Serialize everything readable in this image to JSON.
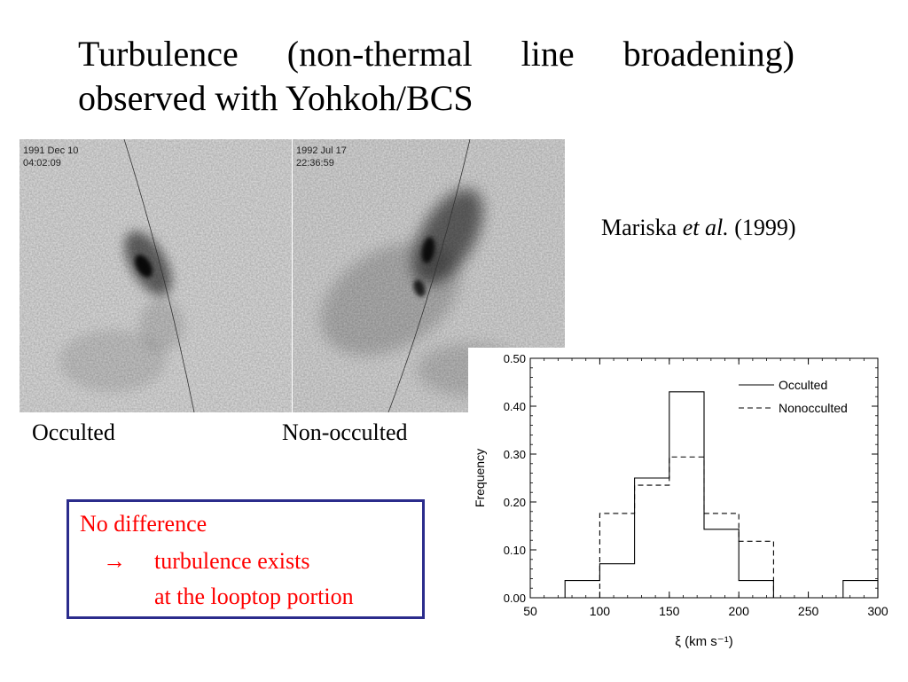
{
  "slide": {
    "title_line1_words": [
      "Turbulence",
      "(non-thermal",
      "line",
      "broadening)"
    ],
    "title_line2": "observed with Yohkoh/BCS",
    "citation_author": "Mariska",
    "citation_etal": "et al.",
    "citation_year": "(1999)"
  },
  "panels": {
    "left": {
      "stamp": "1991 Dec 10\n04:02:09",
      "caption": "Occulted"
    },
    "right": {
      "stamp": "1992 Jul 17\n22:36:59",
      "caption": "Non-occulted"
    }
  },
  "note": {
    "line1": "No difference",
    "arrow": "→",
    "line2": "turbulence exists",
    "line3": "at the looptop portion",
    "text_color": "#ff0000",
    "border_color": "#2b2c8c"
  },
  "chart_data": {
    "type": "step-histogram",
    "title": "",
    "xlabel": "ξ (km s⁻¹)",
    "ylabel": "Frequency",
    "xlim": [
      50,
      300
    ],
    "ylim": [
      0,
      0.5
    ],
    "x_ticks": [
      "50",
      "100",
      "150",
      "200",
      "250",
      "300"
    ],
    "y_ticks": [
      "0.00",
      "0.10",
      "0.20",
      "0.30",
      "0.40",
      "0.50"
    ],
    "bin_edges": [
      75,
      100,
      125,
      150,
      175,
      200,
      225,
      250,
      275,
      300
    ],
    "legend_position": "top-right",
    "grid": false,
    "series": [
      {
        "name": "Occulted",
        "style": "solid",
        "values": [
          0.036,
          0.071,
          0.25,
          0.43,
          0.143,
          0.036,
          0,
          0,
          0.036
        ]
      },
      {
        "name": "Nonocculted",
        "style": "dashed",
        "values": [
          0,
          0.176,
          0.235,
          0.294,
          0.176,
          0.118,
          0,
          0,
          0
        ]
      }
    ]
  }
}
